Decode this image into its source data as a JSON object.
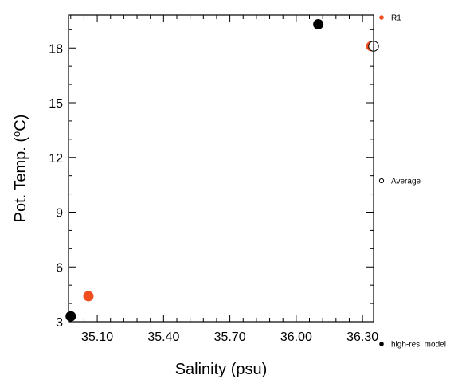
{
  "chart_data": {
    "type": "scatter",
    "title": "",
    "xlabel": "Salinity (psu)",
    "ylabel": "Pot. Temp. (",
    "ylabel_sup": "o",
    "ylabel_tail": "C)",
    "xlim": [
      34.97,
      36.35
    ],
    "ylim": [
      3.0,
      19.8
    ],
    "xticks": [
      35.1,
      35.4,
      35.7,
      36.0,
      36.3
    ],
    "xtick_labels": [
      "35.10",
      "35.40",
      "35.70",
      "36.00",
      "36.30"
    ],
    "yticks": [
      3,
      6,
      9,
      12,
      15,
      18
    ],
    "ytick_labels": [
      "3",
      "6",
      "9",
      "12",
      "15",
      "18"
    ],
    "grid": false,
    "legend_position": "right",
    "series": [
      {
        "name": "high-res. model",
        "marker": "filled-circle",
        "color": "#000000",
        "points": [
          {
            "x": 34.98,
            "y": 3.3
          },
          {
            "x": 36.1,
            "y": 19.3
          }
        ]
      },
      {
        "name": "R1",
        "marker": "filled-circle",
        "color": "#F04E1E",
        "points": [
          {
            "x": 35.06,
            "y": 4.4
          },
          {
            "x": 36.34,
            "y": 18.1
          }
        ]
      },
      {
        "name": "Average",
        "marker": "open-circle",
        "color": "#000000",
        "points": [
          {
            "x": 36.35,
            "y": 18.1
          }
        ]
      }
    ]
  }
}
